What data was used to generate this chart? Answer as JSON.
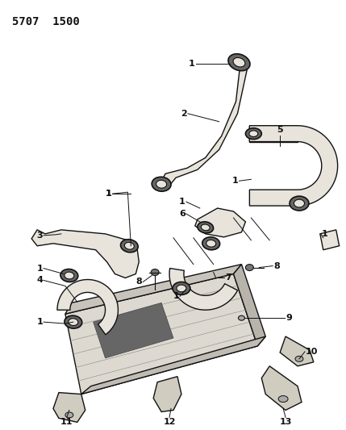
{
  "title": "5707  1500",
  "bg": "#ffffff",
  "lc": "#111111",
  "part_fill": "#e8e4dc",
  "part_fill2": "#d0ccc0",
  "clamp_fill": "#555555",
  "fig_width": 4.29,
  "fig_height": 5.33,
  "dpi": 100
}
